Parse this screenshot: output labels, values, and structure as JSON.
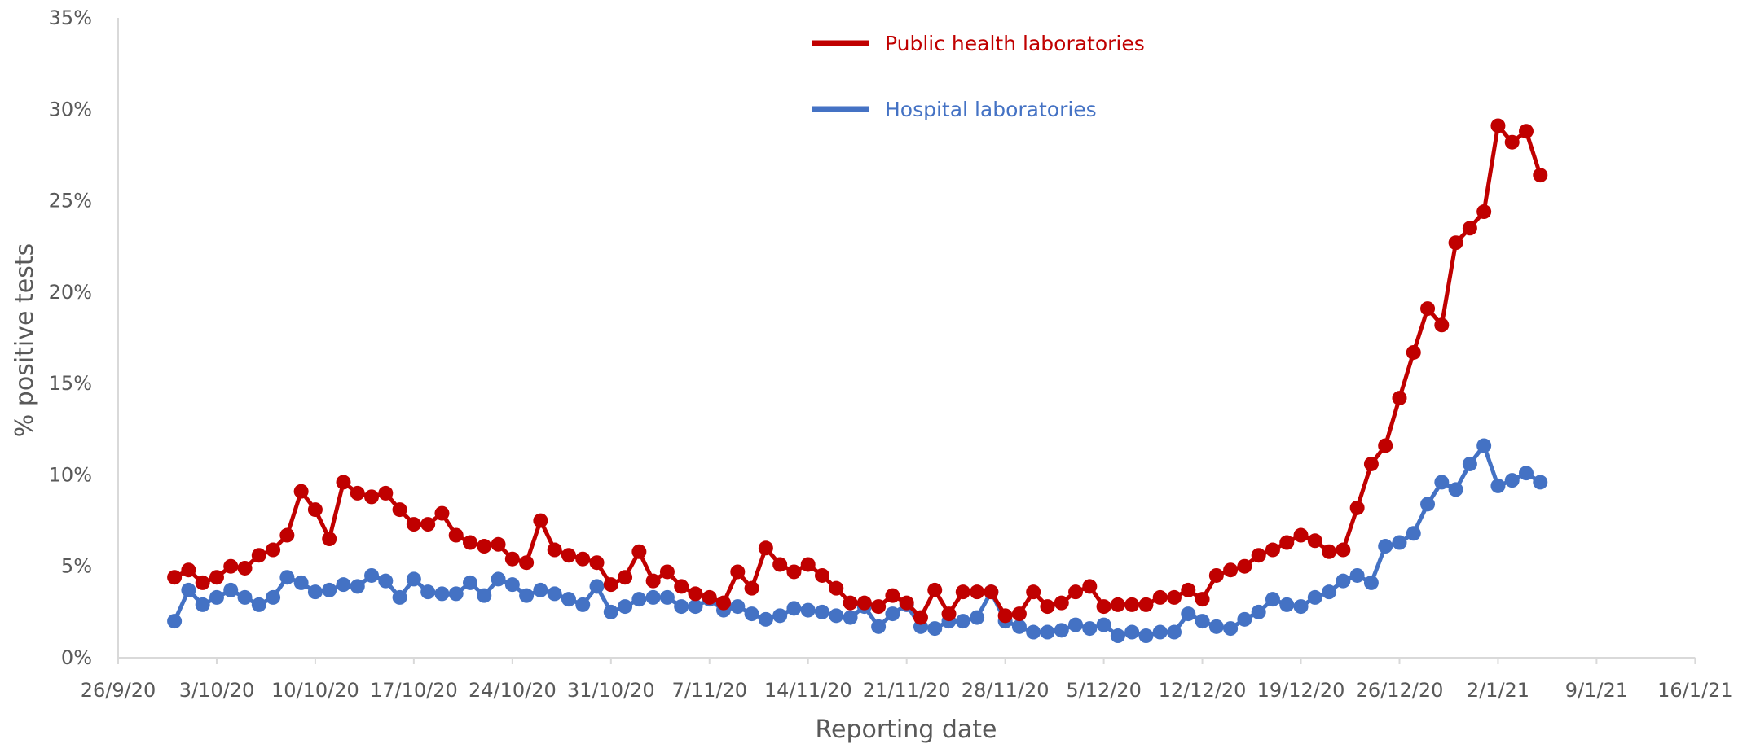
{
  "chart_data": {
    "type": "line",
    "xlabel": "Reporting date",
    "ylabel": "% positive tests",
    "x_tick_labels": [
      "26/9/20",
      "3/10/20",
      "10/10/20",
      "17/10/20",
      "24/10/20",
      "31/10/20",
      "7/11/20",
      "14/11/20",
      "21/11/20",
      "28/11/20",
      "5/12/20",
      "12/12/20",
      "19/12/20",
      "26/12/20",
      "2/1/21",
      "9/1/21",
      "16/1/21"
    ],
    "y_tick_labels": [
      "0%",
      "5%",
      "10%",
      "15%",
      "20%",
      "25%",
      "30%",
      "35%"
    ],
    "ylim": [
      0,
      35
    ],
    "x_start": "30/9/20",
    "x_step_days": 1,
    "grid": false,
    "legend_position": "top-center",
    "series": [
      {
        "name": "Public health laboratories",
        "color": "#C00000",
        "values": [
          4.4,
          4.8,
          4.1,
          4.4,
          5.0,
          4.9,
          5.6,
          5.9,
          6.7,
          9.1,
          8.1,
          6.5,
          9.6,
          9.0,
          8.8,
          9.0,
          8.1,
          7.3,
          7.3,
          7.9,
          6.7,
          6.3,
          6.1,
          6.2,
          5.4,
          5.2,
          7.5,
          5.9,
          5.6,
          5.4,
          5.2,
          4.0,
          4.4,
          5.8,
          4.2,
          4.7,
          3.9,
          3.5,
          3.3,
          3.0,
          4.7,
          3.8,
          6.0,
          5.1,
          4.7,
          5.1,
          4.5,
          3.8,
          3.0,
          3.0,
          2.8,
          3.4,
          3.0,
          2.2,
          3.7,
          2.4,
          3.6,
          3.6,
          3.6,
          2.3,
          2.4,
          3.6,
          2.8,
          3.0,
          3.6,
          3.9,
          2.8,
          2.9,
          2.9,
          2.9,
          3.3,
          3.3,
          3.7,
          3.2,
          4.5,
          4.8,
          5.0,
          5.6,
          5.9,
          6.3,
          6.7,
          6.4,
          5.8,
          5.9,
          8.2,
          10.6,
          11.6,
          14.2,
          16.7,
          19.1,
          18.2,
          22.7,
          23.5,
          24.4,
          29.1,
          28.2,
          28.8,
          26.4
        ]
      },
      {
        "name": "Hospital laboratories",
        "color": "#4472C4",
        "values": [
          2.0,
          3.7,
          2.9,
          3.3,
          3.7,
          3.3,
          2.9,
          3.3,
          4.4,
          4.1,
          3.6,
          3.7,
          4.0,
          3.9,
          4.5,
          4.2,
          3.3,
          4.3,
          3.6,
          3.5,
          3.5,
          4.1,
          3.4,
          4.3,
          4.0,
          3.4,
          3.7,
          3.5,
          3.2,
          2.9,
          3.9,
          2.5,
          2.8,
          3.2,
          3.3,
          3.3,
          2.8,
          2.8,
          3.2,
          2.6,
          2.8,
          2.4,
          2.1,
          2.3,
          2.7,
          2.6,
          2.5,
          2.3,
          2.2,
          2.8,
          1.7,
          2.4,
          2.9,
          1.7,
          1.6,
          2.0,
          2.0,
          2.2,
          3.6,
          2.0,
          1.7,
          1.4,
          1.4,
          1.5,
          1.8,
          1.6,
          1.8,
          1.2,
          1.4,
          1.2,
          1.4,
          1.4,
          2.4,
          2.0,
          1.7,
          1.6,
          2.1,
          2.5,
          3.2,
          2.9,
          2.8,
          3.3,
          3.6,
          4.2,
          4.5,
          4.1,
          6.1,
          6.3,
          6.8,
          8.4,
          9.6,
          9.2,
          10.6,
          11.6,
          9.4,
          9.7,
          10.1,
          9.6
        ]
      }
    ]
  }
}
